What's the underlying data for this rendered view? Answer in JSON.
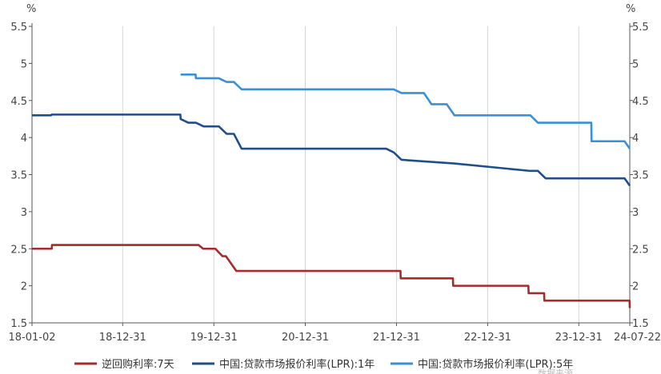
{
  "chart_data": {
    "type": "line",
    "y_unit_left": "%",
    "y_unit_right": "%",
    "ylim": [
      1.5,
      5.5
    ],
    "yticks": [
      "5.5",
      "5",
      "4.5",
      "4",
      "3.5",
      "3",
      "2.5",
      "2",
      "1.5"
    ],
    "xlim": [
      "2018-01-02",
      "2024-07-22"
    ],
    "xticks": [
      "18-01-02",
      "18-12-31",
      "19-12-31",
      "20-12-31",
      "21-12-31",
      "22-12-31",
      "23-12-31",
      "24-07-22"
    ],
    "grid": {
      "vertical": true,
      "horizontal": false
    },
    "legend_position": "bottom",
    "series": [
      {
        "name": "逆回购利率:7天",
        "color": "#a62b2b",
        "points": [
          [
            "2018-01-02",
            2.5
          ],
          [
            "2018-03-22",
            2.5
          ],
          [
            "2018-03-23",
            2.55
          ],
          [
            "2019-10-31",
            2.55
          ],
          [
            "2019-11-18",
            2.5
          ],
          [
            "2020-01-06",
            2.5
          ],
          [
            "2020-02-03",
            2.4
          ],
          [
            "2020-02-17",
            2.4
          ],
          [
            "2020-03-30",
            2.2
          ],
          [
            "2022-01-16",
            2.2
          ],
          [
            "2022-01-17",
            2.1
          ],
          [
            "2022-08-14",
            2.1
          ],
          [
            "2022-08-15",
            2.0
          ],
          [
            "2023-06-12",
            2.0
          ],
          [
            "2023-06-13",
            1.9
          ],
          [
            "2023-08-14",
            1.9
          ],
          [
            "2023-08-15",
            1.8
          ],
          [
            "2024-07-21",
            1.8
          ],
          [
            "2024-07-22",
            1.7
          ]
        ]
      },
      {
        "name": "中国:贷款市场报价利率(LPR):1年",
        "color": "#1f4e8c",
        "points": [
          [
            "2018-01-02",
            4.3
          ],
          [
            "2018-03-20",
            4.3
          ],
          [
            "2018-03-21",
            4.31
          ],
          [
            "2019-08-19",
            4.31
          ],
          [
            "2019-08-20",
            4.25
          ],
          [
            "2019-09-20",
            4.2
          ],
          [
            "2019-10-20",
            4.2
          ],
          [
            "2019-11-20",
            4.15
          ],
          [
            "2020-01-20",
            4.15
          ],
          [
            "2020-02-20",
            4.05
          ],
          [
            "2020-03-20",
            4.05
          ],
          [
            "2020-04-20",
            3.85
          ],
          [
            "2021-11-20",
            3.85
          ],
          [
            "2021-12-20",
            3.8
          ],
          [
            "2022-01-20",
            3.7
          ],
          [
            "2022-08-20",
            3.65
          ],
          [
            "2023-06-20",
            3.55
          ],
          [
            "2023-07-20",
            3.55
          ],
          [
            "2023-08-20",
            3.45
          ],
          [
            "2024-07-01",
            3.45
          ],
          [
            "2024-07-22",
            3.35
          ]
        ]
      },
      {
        "name": "中国:贷款市场报价利率(LPR):5年",
        "color": "#3a8fd9",
        "points": [
          [
            "2019-08-20",
            4.85
          ],
          [
            "2019-10-19",
            4.85
          ],
          [
            "2019-10-20",
            4.8
          ],
          [
            "2020-01-20",
            4.8
          ],
          [
            "2020-02-20",
            4.75
          ],
          [
            "2020-03-20",
            4.75
          ],
          [
            "2020-04-20",
            4.65
          ],
          [
            "2021-12-20",
            4.65
          ],
          [
            "2022-01-20",
            4.6
          ],
          [
            "2022-04-20",
            4.6
          ],
          [
            "2022-05-20",
            4.45
          ],
          [
            "2022-07-20",
            4.45
          ],
          [
            "2022-08-20",
            4.3
          ],
          [
            "2023-06-20",
            4.3
          ],
          [
            "2023-07-20",
            4.2
          ],
          [
            "2024-02-19",
            4.2
          ],
          [
            "2024-02-20",
            3.95
          ],
          [
            "2024-07-01",
            3.95
          ],
          [
            "2024-07-22",
            3.85
          ]
        ]
      }
    ]
  },
  "footer_text": "数据来源"
}
